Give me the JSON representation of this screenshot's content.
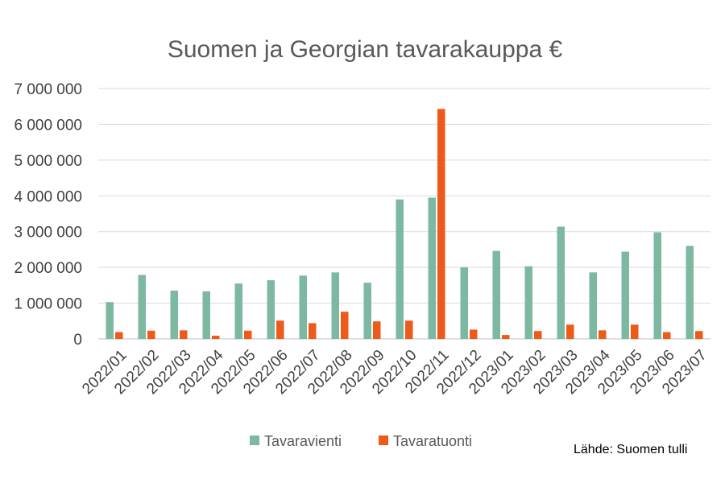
{
  "chart_data": {
    "type": "bar",
    "title": "Suomen ja Georgian tavarakauppa €",
    "xlabel": "",
    "ylabel": "",
    "ylim": [
      0,
      7000000
    ],
    "y_ticks": [
      "0",
      "1 000 000",
      "2 000 000",
      "3 000 000",
      "4 000 000",
      "5 000 000",
      "6 000 000",
      "7 000 000"
    ],
    "categories": [
      "2022/01",
      "2022/02",
      "2022/03",
      "2022/04",
      "2022/05",
      "2022/06",
      "2022/07",
      "2022/08",
      "2022/09",
      "2022/10",
      "2022/11",
      "2022/12",
      "2023/01",
      "2023/02",
      "2023/03",
      "2023/04",
      "2023/05",
      "2023/06",
      "2023/07"
    ],
    "series": [
      {
        "name": "Tavaravienti",
        "color": "#7db8a0",
        "values": [
          1030000,
          1790000,
          1350000,
          1330000,
          1550000,
          1640000,
          1770000,
          1860000,
          1570000,
          3900000,
          3950000,
          2000000,
          2460000,
          2030000,
          3140000,
          1860000,
          2440000,
          2980000,
          2600000
        ]
      },
      {
        "name": "Tavaratuonti",
        "color": "#ee5a1a",
        "values": [
          190000,
          230000,
          240000,
          90000,
          230000,
          510000,
          440000,
          760000,
          490000,
          510000,
          6430000,
          260000,
          110000,
          220000,
          400000,
          240000,
          400000,
          190000,
          220000
        ]
      }
    ],
    "grid": true,
    "legend_position": "bottom",
    "source_note": "Lähde: Suomen tulli"
  }
}
